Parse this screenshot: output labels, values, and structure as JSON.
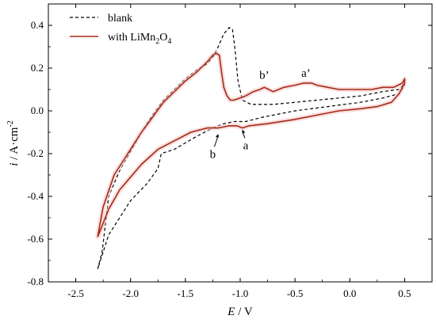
{
  "chart_data": {
    "type": "line",
    "xlabel_symbol": "E",
    "xlabel_unit": " / V",
    "ylabel_symbol": "i",
    "ylabel_unit": " / A·cm",
    "ylabel_exp": "-2",
    "xlim": [
      -2.75,
      0.75
    ],
    "ylim": [
      -0.8,
      0.5
    ],
    "xticks": [
      -2.5,
      -2.0,
      -1.5,
      -1.0,
      -0.5,
      0.0,
      0.5
    ],
    "xtick_labels": [
      "-2.5",
      "-2.0",
      "-1.5",
      "-1.0",
      "-0.5",
      "0.0",
      "0.5"
    ],
    "yticks": [
      -0.8,
      -0.6,
      -0.4,
      -0.2,
      0.0,
      0.2,
      0.4
    ],
    "ytick_labels": [
      "-0.8",
      "-0.6",
      "-0.4",
      "-0.2",
      "0.0",
      "0.2",
      "0.4"
    ],
    "grid": false,
    "legend_position": "top-left",
    "series": [
      {
        "name": "blank",
        "color": "#000000",
        "dash": "dashed",
        "x": [
          -2.3,
          -2.26,
          -2.2,
          -2.1,
          -2.0,
          -1.9,
          -1.8,
          -1.7,
          -1.6,
          -1.5,
          -1.4,
          -1.3,
          -1.25,
          -1.2,
          -1.15,
          -1.1,
          -1.07,
          -1.05,
          -1.02,
          -0.98,
          -0.9,
          -0.7,
          -0.5,
          -0.3,
          -0.1,
          0.1,
          0.3,
          0.45,
          0.5,
          0.5,
          0.45,
          0.3,
          0.1,
          -0.2,
          -0.5,
          -0.8,
          -0.95,
          -1.05,
          -1.15,
          -1.25,
          -1.4,
          -1.6,
          -1.72,
          -1.75,
          -1.85,
          -2.0,
          -2.2,
          -2.3
        ],
        "y": [
          -0.74,
          -0.66,
          -0.4,
          -0.28,
          -0.19,
          -0.1,
          -0.02,
          0.05,
          0.1,
          0.15,
          0.19,
          0.22,
          0.25,
          0.3,
          0.36,
          0.39,
          0.38,
          0.3,
          0.14,
          0.05,
          0.03,
          0.03,
          0.04,
          0.05,
          0.06,
          0.07,
          0.09,
          0.1,
          0.13,
          0.12,
          0.08,
          0.06,
          0.04,
          0.02,
          0.0,
          -0.03,
          -0.05,
          -0.05,
          -0.06,
          -0.08,
          -0.12,
          -0.18,
          -0.2,
          -0.27,
          -0.34,
          -0.42,
          -0.58,
          -0.74
        ]
      },
      {
        "name": "with LiMn2O4",
        "name_main": "with LiMn",
        "name_sub1": "2",
        "name_mid": "O",
        "name_sub2": "4",
        "color": "#a52a16",
        "dash": "solid",
        "x": [
          -2.3,
          -2.25,
          -2.15,
          -2.0,
          -1.9,
          -1.8,
          -1.7,
          -1.6,
          -1.5,
          -1.4,
          -1.3,
          -1.25,
          -1.22,
          -1.19,
          -1.17,
          -1.15,
          -1.12,
          -1.09,
          -1.06,
          -1.0,
          -0.95,
          -0.88,
          -0.82,
          -0.78,
          -0.74,
          -0.7,
          -0.6,
          -0.5,
          -0.42,
          -0.35,
          -0.3,
          -0.2,
          -0.1,
          0.0,
          0.1,
          0.2,
          0.3,
          0.4,
          0.48,
          0.5,
          0.5,
          0.45,
          0.38,
          0.25,
          0.1,
          -0.1,
          -0.3,
          -0.5,
          -0.75,
          -0.92,
          -0.98,
          -1.03,
          -1.1,
          -1.2,
          -1.3,
          -1.45,
          -1.6,
          -1.75,
          -1.9,
          -2.0,
          -2.1,
          -2.2,
          -2.3
        ],
        "y": [
          -0.59,
          -0.45,
          -0.3,
          -0.18,
          -0.1,
          -0.03,
          0.04,
          0.09,
          0.14,
          0.18,
          0.23,
          0.26,
          0.27,
          0.26,
          0.18,
          0.11,
          0.07,
          0.05,
          0.05,
          0.06,
          0.07,
          0.09,
          0.1,
          0.11,
          0.1,
          0.09,
          0.11,
          0.12,
          0.13,
          0.13,
          0.12,
          0.11,
          0.1,
          0.1,
          0.1,
          0.1,
          0.11,
          0.11,
          0.13,
          0.15,
          0.13,
          0.08,
          0.04,
          0.02,
          0.01,
          0.0,
          -0.02,
          -0.04,
          -0.06,
          -0.07,
          -0.08,
          -0.07,
          -0.07,
          -0.08,
          -0.08,
          -0.1,
          -0.14,
          -0.18,
          -0.25,
          -0.31,
          -0.37,
          -0.46,
          -0.59
        ]
      }
    ],
    "annotations": [
      {
        "label": "b’",
        "x": -0.78,
        "y": 0.15
      },
      {
        "label": "a’",
        "x": -0.4,
        "y": 0.16
      },
      {
        "label": "b",
        "x": -1.25,
        "y": -0.22,
        "arrow_to": [
          -1.2,
          -0.1
        ]
      },
      {
        "label": "a",
        "x": -0.95,
        "y": -0.18,
        "arrow_to": [
          -0.98,
          -0.08
        ]
      }
    ]
  }
}
